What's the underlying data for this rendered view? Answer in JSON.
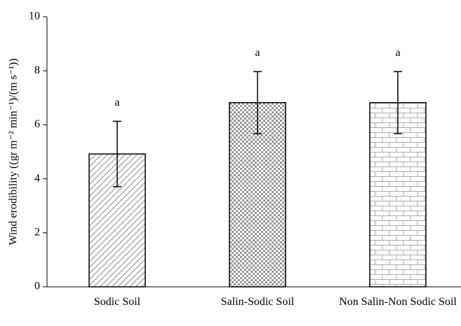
{
  "chart_data": {
    "type": "bar",
    "y_label": "Wind erodibility ((gr m⁻² min⁻¹)/(m s⁻¹))",
    "categories": [
      "Sodic Soil",
      "Salin-Sodic Soil",
      "Non Salin-Non Sodic Soil"
    ],
    "values": [
      4.92,
      6.82,
      6.82
    ],
    "errors": [
      1.21,
      1.15,
      1.15
    ],
    "annotations": [
      "a",
      "a",
      "a"
    ],
    "color": "#000000",
    "ylim": [
      0,
      10
    ],
    "yticks": [
      0,
      2,
      4,
      6,
      8,
      10
    ],
    "grid": false
  }
}
